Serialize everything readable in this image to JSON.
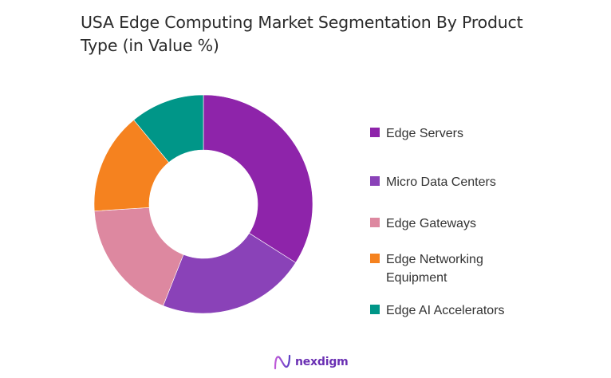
{
  "title": "USA Edge Computing Market Segmentation By Product Type (in Value %)",
  "chart_data": {
    "type": "pie",
    "variant": "donut",
    "title": "USA Edge Computing Market Segmentation By Product Type (in Value %)",
    "categories": [
      "Edge Servers",
      "Micro Data Centers",
      "Edge Gateways",
      "Edge Networking Equipment",
      "Edge AI Accelerators"
    ],
    "values": [
      34,
      22,
      18,
      15,
      11
    ],
    "colors": [
      "#8e24aa",
      "#8a42b8",
      "#dd88a0",
      "#f5821f",
      "#009688"
    ],
    "unit": "%",
    "legend_position": "right",
    "start_angle": "12 o'clock, clockwise"
  },
  "legend": [
    {
      "label": "Edge Servers",
      "color": "#8e24aa"
    },
    {
      "label": "Micro Data Centers",
      "color": "#8a42b8"
    },
    {
      "label": "Edge Gateways",
      "color": "#dd88a0"
    },
    {
      "label": "Edge Networking Equipment",
      "color": "#f5821f"
    },
    {
      "label": "Edge AI Accelerators",
      "color": "#009688"
    }
  ],
  "brand": {
    "name": "nexdigm",
    "color": "#6a2fb3"
  }
}
